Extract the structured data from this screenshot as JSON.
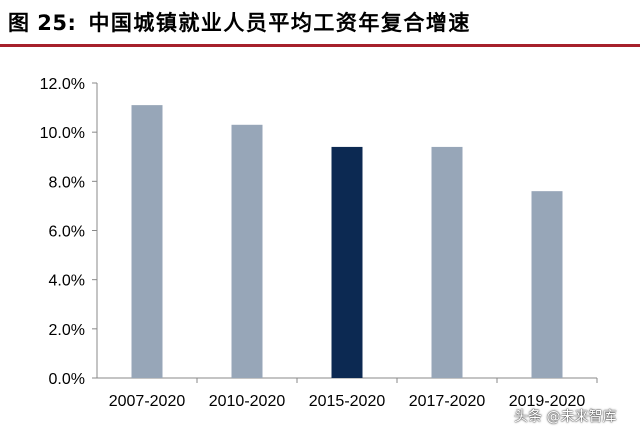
{
  "header": {
    "figure_label": "图 25:",
    "title": "中国城镇就业人员平均工资年复合增速"
  },
  "colors": {
    "header_rule": "#a6202b",
    "bar_default": "#97a6b8",
    "bar_highlight": "#0c2952",
    "axis": "#888888"
  },
  "chart_data": {
    "type": "bar",
    "categories": [
      "2007-2020",
      "2010-2020",
      "2015-2020",
      "2017-2020",
      "2019-2020"
    ],
    "values": [
      11.1,
      10.3,
      9.4,
      9.4,
      7.6
    ],
    "highlight_index": 2,
    "ylim": [
      0,
      12
    ],
    "yticks": [
      0,
      2,
      4,
      6,
      8,
      10,
      12
    ],
    "ytick_labels": [
      "0.0%",
      "2.0%",
      "4.0%",
      "6.0%",
      "8.0%",
      "10.0%",
      "12.0%"
    ],
    "title": "",
    "xlabel": "",
    "ylabel": "",
    "grid": false,
    "legend": "none"
  },
  "watermark": "头条 @未来智库"
}
